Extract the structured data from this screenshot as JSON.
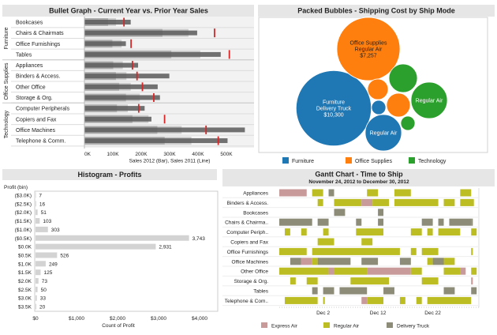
{
  "chart_data": [
    {
      "type": "bullet",
      "title": "Bullet Graph - Current Year vs. Prior Year Sales",
      "xlabel": "Sales 2012 (Bar), Sales 2011 (Line)",
      "ticks": [
        "0K",
        "100K",
        "200K",
        "300K",
        "400K",
        "500K"
      ],
      "tick_values": [
        0,
        100,
        200,
        300,
        400,
        500
      ],
      "groups": [
        "Furniture",
        "Office Supplies",
        "Technology"
      ],
      "rows": [
        {
          "group": "Furniture",
          "label": "Bookcases",
          "sales_2012": 163,
          "sales_2011": 139
        },
        {
          "group": "Furniture",
          "label": "Chairs & Chairmats",
          "sales_2012": 397,
          "sales_2011": 458
        },
        {
          "group": "Furniture",
          "label": "Office Furnishings",
          "sales_2012": 146,
          "sales_2011": 164
        },
        {
          "group": "Furniture",
          "label": "Tables",
          "sales_2012": 480,
          "sales_2011": 510
        },
        {
          "group": "Office Supplies",
          "label": "Appliances",
          "sales_2012": 189,
          "sales_2011": 169
        },
        {
          "group": "Office Supplies",
          "label": "Binders & Access.",
          "sales_2012": 299,
          "sales_2011": 185
        },
        {
          "group": "Office Supplies",
          "label": "Other Office",
          "sales_2012": 258,
          "sales_2011": 204
        },
        {
          "group": "Office Supplies",
          "label": "Storage & Org.",
          "sales_2012": 266,
          "sales_2011": 244
        },
        {
          "group": "Technology",
          "label": "Computer Peripherals",
          "sales_2012": 212,
          "sales_2011": 191
        },
        {
          "group": "Technology",
          "label": "Copiers and Fax",
          "sales_2012": 236,
          "sales_2011": 282
        },
        {
          "group": "Technology",
          "label": "Office Machines",
          "sales_2012": 565,
          "sales_2011": 428
        },
        {
          "group": "Technology",
          "label": "Telephone & Comm.",
          "sales_2012": 504,
          "sales_2011": 471
        }
      ],
      "colors": {
        "bar": "#5b5b5b",
        "band_60": "#ababab",
        "band_80": "#cdcdcd",
        "target": "#d62728"
      }
    },
    {
      "type": "packed-bubbles",
      "title": "Packed Bubbles - Shipping Cost by Ship Mode",
      "legend": [
        {
          "label": "Furniture",
          "color": "#1f77b4"
        },
        {
          "label": "Office Supplies",
          "color": "#ff7f0e"
        },
        {
          "label": "Technology",
          "color": "#2ca02c"
        }
      ],
      "bubbles": [
        {
          "category": "Furniture",
          "lines": [
            "Furniture",
            "Delivery Truck",
            "$10,300"
          ],
          "value": 10300
        },
        {
          "category": "Office Supplies",
          "lines": [
            "Office Supplies",
            "Regular Air",
            "$7,257"
          ],
          "value": 7257
        },
        {
          "category": "Furniture",
          "lines": [
            "Regular Air"
          ],
          "value": 2400
        },
        {
          "category": "Technology",
          "lines": [
            "Regular Air"
          ],
          "value": 2400
        },
        {
          "category": "Technology",
          "lines": [],
          "value": 1470
        },
        {
          "category": "Office Supplies",
          "lines": [],
          "value": 770
        },
        {
          "category": "Office Supplies",
          "lines": [],
          "value": 1020
        },
        {
          "category": "Furniture",
          "lines": [],
          "value": 370
        },
        {
          "category": "Technology",
          "lines": [],
          "value": 370
        }
      ]
    },
    {
      "type": "bar",
      "title": "Histogram - Profits",
      "ylabel": "Profit (bin)",
      "xlabel": "Count of Profit",
      "categories": [
        "($3.0K)",
        "($2.5K)",
        "($2.0K)",
        "($1.5K)",
        "($1.0K)",
        "($0.5K)",
        "$0.0K",
        "$0.5K",
        "$1.0K",
        "$1.5K",
        "$2.0K",
        "$2.5K",
        "$3.0K",
        "$3.5K"
      ],
      "values": [
        7,
        16,
        51,
        103,
        303,
        3743,
        2931,
        526,
        249,
        125,
        73,
        50,
        33,
        20
      ],
      "value_labels": [
        "7",
        "16",
        "51",
        "103",
        "303",
        "3,743",
        "2,931",
        "526",
        "249",
        "125",
        "73",
        "50",
        "33",
        "20"
      ],
      "xticks": [
        "$0",
        "$1,000",
        "$2,000",
        "$3,000",
        "$4,000"
      ],
      "xtick_values": [
        0,
        1000,
        2000,
        3000,
        4000
      ],
      "bar_color": "#d3d3d3"
    },
    {
      "type": "gantt",
      "title": "Gantt Chart - Time to Ship",
      "subtitle": "November 24, 2012 to December 30, 2012",
      "range": [
        "2012-11-24",
        "2012-12-30"
      ],
      "xticks": [
        "Dec 2",
        "Dec 12",
        "Dec 22"
      ],
      "xtick_dates": [
        "2012-12-02",
        "2012-12-12",
        "2012-12-22"
      ],
      "legend": [
        {
          "label": "Express Air",
          "color": "#c99a9a"
        },
        {
          "label": "Regular Air",
          "color": "#bcbd22"
        },
        {
          "label": "Delivery Truck",
          "color": "#8c8c78"
        }
      ],
      "rows": [
        {
          "label": "Appliances",
          "tasks": [
            [
              "Express Air",
              "2012-11-24",
              5
            ],
            [
              "Regular Air",
              "2012-11-30",
              2
            ],
            [
              "Delivery Truck",
              "2012-12-03",
              1
            ],
            [
              "Regular Air",
              "2012-12-10",
              2
            ],
            [
              "Regular Air",
              "2012-12-15",
              3
            ],
            [
              "Regular Air",
              "2012-12-27",
              2
            ]
          ]
        },
        {
          "label": "Binders & Access.",
          "tasks": [
            [
              "Regular Air",
              "2012-12-01",
              1
            ],
            [
              "Regular Air",
              "2012-12-04",
              5
            ],
            [
              "Express Air",
              "2012-12-09",
              2
            ],
            [
              "Regular Air",
              "2012-12-11",
              3
            ],
            [
              "Regular Air",
              "2012-12-15",
              8
            ],
            [
              "Regular Air",
              "2012-12-24",
              2
            ],
            [
              "Regular Air",
              "2012-12-27",
              2.5
            ]
          ]
        },
        {
          "label": "Bookcases",
          "tasks": [
            [
              "Delivery Truck",
              "2012-12-04",
              2
            ],
            [
              "Delivery Truck",
              "2012-12-12",
              1
            ]
          ]
        },
        {
          "label": "Chairs & Chairma..",
          "tasks": [
            [
              "Delivery Truck",
              "2012-11-24",
              6
            ],
            [
              "Delivery Truck",
              "2012-12-01",
              2
            ],
            [
              "Delivery Truck",
              "2012-12-08",
              1
            ],
            [
              "Delivery Truck",
              "2012-12-12",
              1
            ],
            [
              "Delivery Truck",
              "2012-12-20",
              2
            ],
            [
              "Delivery Truck",
              "2012-12-23",
              1
            ],
            [
              "Delivery Truck",
              "2012-12-25",
              4
            ],
            [
              "Delivery Truck",
              "2012-12-29",
              0.3
            ]
          ]
        },
        {
          "label": "Computer Periph..",
          "tasks": [
            [
              "Regular Air",
              "2012-11-25",
              1
            ],
            [
              "Regular Air",
              "2012-11-28",
              1
            ],
            [
              "Regular Air",
              "2012-12-02",
              1
            ],
            [
              "Regular Air",
              "2012-12-08",
              5
            ],
            [
              "Regular Air",
              "2012-12-18",
              2
            ],
            [
              "Regular Air",
              "2012-12-21",
              1
            ],
            [
              "Regular Air",
              "2012-12-23",
              4
            ],
            [
              "Regular Air",
              "2012-12-29",
              1
            ]
          ]
        },
        {
          "label": "Copiers and Fax",
          "tasks": [
            [
              "Regular Air",
              "2012-12-01",
              3
            ],
            [
              "Regular Air",
              "2012-12-09",
              2
            ]
          ]
        },
        {
          "label": "Office Furnishings",
          "tasks": [
            [
              "Regular Air",
              "2012-11-24",
              5
            ],
            [
              "Regular Air",
              "2012-11-30",
              16
            ],
            [
              "Regular Air",
              "2012-12-18",
              1
            ],
            [
              "Regular Air",
              "2012-12-20",
              3
            ],
            [
              "Regular Air",
              "2012-12-29",
              0.3
            ]
          ]
        },
        {
          "label": "Office Machines",
          "tasks": [
            [
              "Delivery Truck",
              "2012-11-26",
              2
            ],
            [
              "Express Air",
              "2012-11-28",
              2
            ],
            [
              "Regular Air",
              "2012-11-30",
              1
            ],
            [
              "Delivery Truck",
              "2012-12-01",
              6
            ],
            [
              "Delivery Truck",
              "2012-12-09",
              3
            ],
            [
              "Delivery Truck",
              "2012-12-16",
              2
            ],
            [
              "Regular Air",
              "2012-12-21",
              1
            ],
            [
              "Delivery Truck",
              "2012-12-22",
              2
            ],
            [
              "Regular Air",
              "2012-12-24",
              2
            ]
          ]
        },
        {
          "label": "Other Office",
          "tasks": [
            [
              "Regular Air",
              "2012-11-24",
              9
            ],
            [
              "Express Air",
              "2012-12-03",
              1
            ],
            [
              "Regular Air",
              "2012-12-04",
              6
            ],
            [
              "Express Air",
              "2012-12-10",
              8
            ],
            [
              "Regular Air",
              "2012-12-18",
              2
            ],
            [
              "Regular Air",
              "2012-12-24",
              3
            ],
            [
              "Express Air",
              "2012-12-27",
              1
            ],
            [
              "Regular Air",
              "2012-12-29",
              1
            ]
          ]
        },
        {
          "label": "Storage & Org.",
          "tasks": [
            [
              "Regular Air",
              "2012-11-26",
              1
            ],
            [
              "Regular Air",
              "2012-11-29",
              2
            ],
            [
              "Regular Air",
              "2012-12-07",
              7
            ],
            [
              "Regular Air",
              "2012-12-20",
              3
            ],
            [
              "Express Air",
              "2012-12-29",
              0.3
            ]
          ]
        },
        {
          "label": "Tables",
          "tasks": [
            [
              "Delivery Truck",
              "2012-11-30",
              1
            ],
            [
              "Delivery Truck",
              "2012-12-02",
              2
            ],
            [
              "Delivery Truck",
              "2012-12-05",
              5
            ],
            [
              "Delivery Truck",
              "2012-12-13",
              2
            ],
            [
              "Delivery Truck",
              "2012-12-24",
              2
            ],
            [
              "Delivery Truck",
              "2012-12-29",
              1
            ]
          ]
        },
        {
          "label": "Telephone & Com..",
          "tasks": [
            [
              "Regular Air",
              "2012-11-25",
              6
            ],
            [
              "Regular Air",
              "2012-12-02",
              0.3
            ],
            [
              "Express Air",
              "2012-12-09",
              1
            ],
            [
              "Regular Air",
              "2012-12-10",
              3
            ],
            [
              "Regular Air",
              "2012-12-16",
              1
            ],
            [
              "Regular Air",
              "2012-12-19",
              1
            ],
            [
              "Regular Air",
              "2012-12-21",
              8
            ]
          ]
        }
      ]
    }
  ]
}
